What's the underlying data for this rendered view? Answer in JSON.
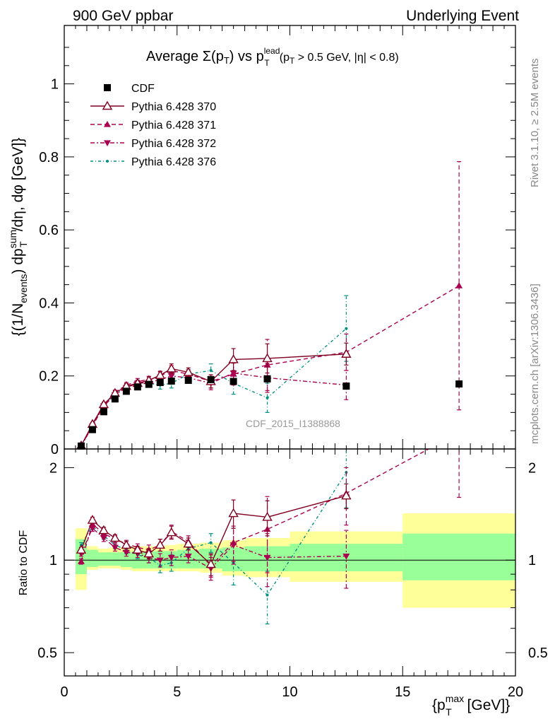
{
  "header": {
    "left": "900 GeV ppbar",
    "right": "Underlying Event"
  },
  "side_labels": {
    "rivet": "Rivet 3.1.10, ≥ 2.5M events",
    "mcplots": "mcplots.cern.ch [arXiv:1306.3436]"
  },
  "watermark": "CDF_2015_I1388868",
  "chart_data": {
    "type": "scatter",
    "title": "Average Σ(pT) vs pT lead (pT > 0.5 GeV, |η| < 0.8)",
    "ylabel": "{(1/N_events) dp_T^sum/dη, dφ [GeV]}",
    "xlabel": "{p_T^max [GeV]}",
    "xlim": [
      0,
      20
    ],
    "ylim": [
      0,
      1.16
    ],
    "x_ticks": [
      "0",
      "5",
      "10",
      "15",
      "20"
    ],
    "y_ticks": [
      "0",
      "0.2",
      "0.4",
      "0.6",
      "0.8",
      "1"
    ],
    "legend_position": "top-left",
    "legend": [
      "CDF",
      "Pythia 6.428 370",
      "Pythia 6.428 371",
      "Pythia 6.428 372",
      "Pythia 6.428 376"
    ],
    "x": [
      0.75,
      1.25,
      1.75,
      2.25,
      2.75,
      3.25,
      3.75,
      4.25,
      4.75,
      5.5,
      6.5,
      7.5,
      9.0,
      12.5,
      17.5
    ],
    "series": [
      {
        "name": "CDF",
        "color": "#000000",
        "marker": "square",
        "values": [
          0.008,
          0.053,
          0.102,
          0.137,
          0.158,
          0.17,
          0.177,
          0.182,
          0.186,
          0.188,
          0.19,
          0.185,
          0.192,
          0.172,
          0.178
        ],
        "errors": [
          0,
          0,
          0,
          0,
          0,
          0,
          0,
          0,
          0,
          0,
          0,
          0,
          0,
          0,
          0
        ]
      },
      {
        "name": "Pythia 6.428 370",
        "color": "#800020",
        "marker": "triangle-open",
        "dash": "",
        "values": [
          0.009,
          0.068,
          0.122,
          0.153,
          0.172,
          0.18,
          0.188,
          0.202,
          0.22,
          0.21,
          0.185,
          0.245,
          0.248,
          0.26
        ],
        "errors": [
          0.002,
          0.005,
          0.006,
          0.006,
          0.007,
          0.008,
          0.009,
          0.011,
          0.013,
          0.012,
          0.018,
          0.03,
          0.04,
          0.03
        ]
      },
      {
        "name": "Pythia 6.428 371",
        "color": "#aa0050",
        "marker": "triangle-up",
        "dash": "6 4",
        "values": [
          0.008,
          0.065,
          0.118,
          0.155,
          0.175,
          0.185,
          0.19,
          0.2,
          0.215,
          0.205,
          0.185,
          0.205,
          0.23,
          0.265,
          0.447
        ],
        "errors": [
          0.002,
          0.005,
          0.006,
          0.006,
          0.007,
          0.008,
          0.009,
          0.011,
          0.013,
          0.012,
          0.018,
          0.03,
          0.07,
          0.05,
          0.34
        ]
      },
      {
        "name": "Pythia 6.428 372",
        "color": "#aa0050",
        "marker": "triangle-down",
        "dash": "6 3 2 3",
        "values": [
          0.008,
          0.062,
          0.118,
          0.148,
          0.168,
          0.18,
          0.182,
          0.19,
          0.2,
          0.195,
          0.18,
          0.208,
          0.195,
          0.175
        ],
        "errors": [
          0.002,
          0.005,
          0.006,
          0.006,
          0.007,
          0.008,
          0.009,
          0.011,
          0.013,
          0.012,
          0.018,
          0.03,
          0.04,
          0.04
        ]
      },
      {
        "name": "Pythia 6.428 376",
        "color": "#009080",
        "marker": "dot",
        "dash": "4 3 1 3",
        "values": [
          0.009,
          0.066,
          0.12,
          0.15,
          0.17,
          0.178,
          0.18,
          0.175,
          0.18,
          0.205,
          0.215,
          0.18,
          0.14,
          0.33
        ],
        "errors": [
          0.002,
          0.005,
          0.006,
          0.006,
          0.007,
          0.008,
          0.009,
          0.011,
          0.013,
          0.012,
          0.018,
          0.03,
          0.04,
          0.09
        ]
      }
    ],
    "ratio": {
      "ylabel": "Ratio to CDF",
      "ylim": [
        0.42,
        2.3
      ],
      "y_ticks": [
        "0.5",
        "1",
        "2"
      ],
      "bin_edges": [
        0.5,
        1.0,
        1.5,
        2.0,
        2.5,
        3.0,
        3.5,
        4.0,
        4.5,
        5.0,
        6.0,
        7.0,
        8.0,
        10.0,
        15.0,
        20.0
      ],
      "band_inner": [
        [
          0.9,
          1.17
        ],
        [
          0.95,
          1.08
        ],
        [
          0.96,
          1.06
        ],
        [
          0.96,
          1.06
        ],
        [
          0.95,
          1.06
        ],
        [
          0.94,
          1.07
        ],
        [
          0.94,
          1.07
        ],
        [
          0.94,
          1.07
        ],
        [
          0.94,
          1.07
        ],
        [
          0.94,
          1.08
        ],
        [
          0.94,
          1.09
        ],
        [
          0.92,
          1.1
        ],
        [
          0.92,
          1.11
        ],
        [
          0.92,
          1.13
        ],
        [
          0.86,
          1.22
        ]
      ],
      "band_outer": [
        [
          0.8,
          1.27
        ],
        [
          0.93,
          1.11
        ],
        [
          0.94,
          1.09
        ],
        [
          0.94,
          1.1
        ],
        [
          0.93,
          1.1
        ],
        [
          0.92,
          1.11
        ],
        [
          0.92,
          1.11
        ],
        [
          0.92,
          1.11
        ],
        [
          0.92,
          1.12
        ],
        [
          0.92,
          1.13
        ],
        [
          0.91,
          1.14
        ],
        [
          0.89,
          1.16
        ],
        [
          0.88,
          1.18
        ],
        [
          0.85,
          1.24
        ],
        [
          0.7,
          1.42
        ]
      ],
      "series": [
        {
          "name": "Pythia 6.428 370",
          "values": [
            1.08,
            1.35,
            1.25,
            1.18,
            1.12,
            1.08,
            1.05,
            1.12,
            1.23,
            1.13,
            0.97,
            1.42,
            1.38,
            1.62
          ],
          "errors": [
            0.02,
            0.03,
            0.03,
            0.03,
            0.03,
            0.03,
            0.04,
            0.05,
            0.06,
            0.05,
            0.08,
            0.15,
            0.18,
            0.15
          ]
        },
        {
          "name": "Pythia 6.428 371",
          "values": [
            0.99,
            1.31,
            1.22,
            1.17,
            1.13,
            1.1,
            1.08,
            1.12,
            1.24,
            1.15,
            0.96,
            1.14,
            1.26,
            1.65,
            2.6
          ],
          "errors": [
            0.02,
            0.03,
            0.03,
            0.03,
            0.03,
            0.03,
            0.04,
            0.05,
            0.06,
            0.05,
            0.08,
            0.15,
            0.35,
            0.35,
            1.0
          ]
        },
        {
          "name": "Pythia 6.428 372",
          "values": [
            1.05,
            1.27,
            1.18,
            1.1,
            1.06,
            1.05,
            1.02,
            1.0,
            1.02,
            1.03,
            0.94,
            1.12,
            1.02,
            1.03
          ],
          "errors": [
            0.02,
            0.03,
            0.03,
            0.03,
            0.03,
            0.03,
            0.04,
            0.05,
            0.06,
            0.05,
            0.08,
            0.15,
            0.2,
            0.22
          ]
        },
        {
          "name": "Pythia 6.428 376",
          "values": [
            1.12,
            1.29,
            1.2,
            1.12,
            1.08,
            1.04,
            1.02,
            0.96,
            0.98,
            1.09,
            1.14,
            0.98,
            0.77,
            1.93
          ],
          "errors": [
            0.02,
            0.03,
            0.03,
            0.03,
            0.03,
            0.03,
            0.04,
            0.05,
            0.06,
            0.05,
            0.08,
            0.15,
            0.15,
            0.45
          ]
        }
      ]
    }
  }
}
